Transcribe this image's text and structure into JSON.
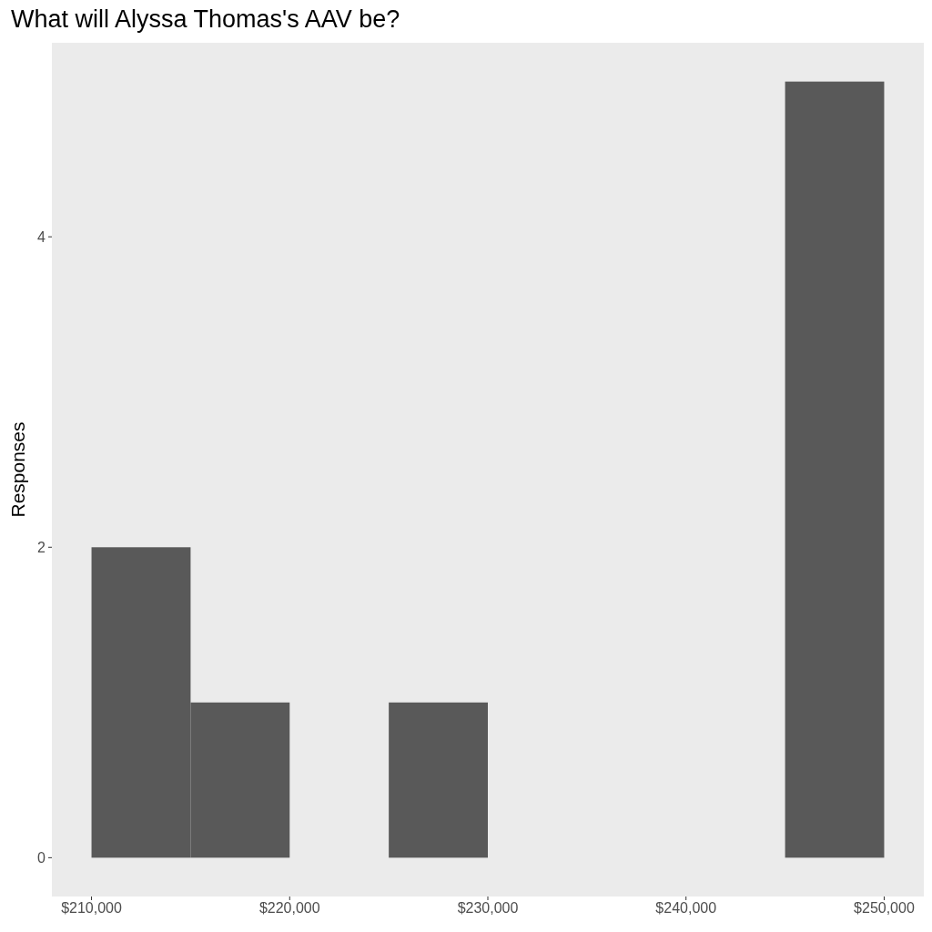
{
  "chart_data": {
    "type": "histogram",
    "title": "What will Alyssa Thomas's AAV be?",
    "ylabel": "Responses",
    "bins": [
      210000,
      215000,
      220000,
      225000,
      230000,
      235000,
      240000,
      245000,
      250000
    ],
    "values": [
      2,
      1,
      0,
      1,
      0,
      0,
      0,
      5
    ],
    "color": "#595959",
    "xlim": [
      208000,
      252000
    ],
    "xticks": [
      {
        "value": 210000,
        "label": "$210,000"
      },
      {
        "value": 220000,
        "label": "$220,000"
      },
      {
        "value": 230000,
        "label": "$230,000"
      },
      {
        "value": 240000,
        "label": "$240,000"
      },
      {
        "value": 250000,
        "label": "$250,000"
      }
    ],
    "ylim": [
      -0.25,
      5.25
    ],
    "yticks": [
      0,
      2,
      4
    ]
  }
}
